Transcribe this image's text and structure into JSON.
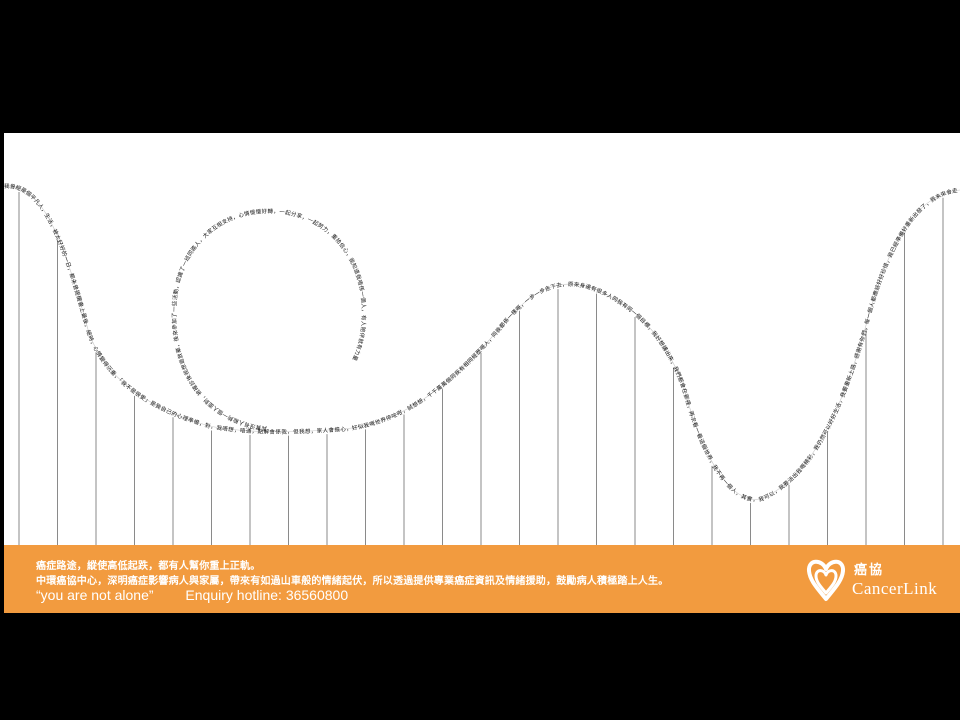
{
  "footer": {
    "line1": "癌症路途，縱使高低起跌，都有人幫你重上正軌。",
    "line2": "中環癌協中心，深明癌症影響病人與家屬，帶來有如過山車般的情緒起伏，所以透過提供專業癌症資訊及情緒援助，鼓勵病人積極踏上人生。",
    "slogan": "“you are not alone”",
    "hotline": "Enquiry hotline: 36560800"
  },
  "logo": {
    "chinese": "癌協",
    "english": "CancerLink",
    "color": "#ffffff"
  },
  "colors": {
    "band": "#f29b3f",
    "track": "#111111",
    "supports": "#777777",
    "background": "#ffffff"
  },
  "roller_coaster": {
    "track_text": "我曾經是個平凡人，生活，被太好好的一日，都未曾提醒書上最後，細時，心情變得沉重，「我不是很愛」是我自己的心理準備，對，我唔想，唔通，點解會係我，但我想，家人會擔心，好似我嘅世界停咗咁，試想想，千千萬萬個同我有相同經歷嘅人，同我都係一樣嘅，一步一步走下去，原來身邊有很多人同我有同一個目標，我好想講出來，我們都會在那裡，再次看一看這個世界，我不再一個人，其實，我可以，我要活出我嘅精彩，我仍然可以好好生活，我要重新上路，感謝有你們，每一個人都應該好好珍惜，我已經準備好重新出發了，我未來會走得更遠，而我知道我並不孤單，我要向前行，所以我會堅持下去，有你同行真好，就讓我哋一齊重上正軌，我們都可以勇敢面對！",
    "loop_text": "其實沒有人能夠一個人面對，被確診後我想過放棄，後來參加了一些活動，認識了一班同路人，大家互相支持，心情慢慢好轉，一起分享，一起努力，重拾信心，我知道我唔係一個人，有人陪伴就有力量"
  }
}
